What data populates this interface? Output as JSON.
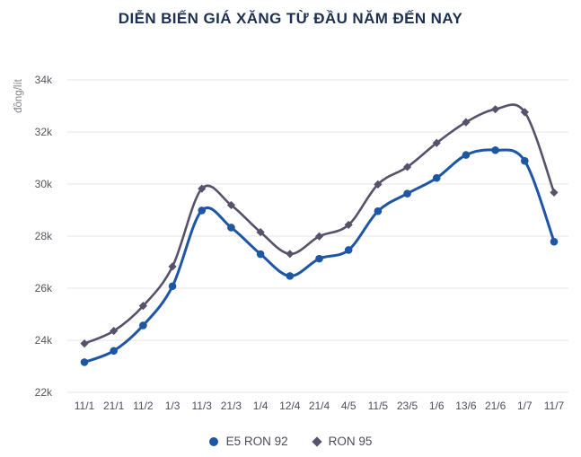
{
  "title": "DIỄN BIẾN GIÁ XĂNG TỪ ĐẦU NĂM ĐẾN NAY",
  "colors": {
    "title": "#1c3151",
    "e5_ron_92": "#1d56a5",
    "ron_95": "#56526b",
    "grid": "#e6e6e9",
    "y_tick_text": "#55555f",
    "x_tick_text": "#4d4d5f",
    "legend_text": "#4c4c5c",
    "y_unit_text": "#83838a"
  },
  "chart_data": {
    "type": "line",
    "title": "DIỄN BIẾN GIÁ XĂNG TỪ ĐẦU NĂM ĐẾN NAY",
    "ylabel": "đồng/lít",
    "xlabel": "",
    "x": [
      "11/1",
      "21/1",
      "11/2",
      "1/3",
      "11/3",
      "21/3",
      "1/4",
      "12/4",
      "21/4",
      "4/5",
      "11/5",
      "23/5",
      "1/6",
      "13/6",
      "21/6",
      "1/7",
      "11/7"
    ],
    "series": [
      {
        "name": "E5 RON 92",
        "marker": "circle",
        "color": "#1d56a5",
        "values": [
          23159,
          23595,
          24571,
          26077,
          28985,
          28330,
          27309,
          26470,
          27134,
          27468,
          28959,
          29633,
          30235,
          31117,
          31302,
          30891,
          27788
        ]
      },
      {
        "name": "RON 95",
        "marker": "diamond",
        "color": "#56526b",
        "values": [
          23876,
          24360,
          25322,
          26834,
          29824,
          29192,
          28153,
          27317,
          27992,
          28434,
          29988,
          30657,
          31578,
          32375,
          32873,
          32763,
          29675
        ]
      }
    ],
    "ylim": [
      22000,
      34000
    ],
    "yticks": [
      {
        "value": 22000,
        "label": "22k"
      },
      {
        "value": 24000,
        "label": "24k"
      },
      {
        "value": 26000,
        "label": "26k"
      },
      {
        "value": 28000,
        "label": "28k"
      },
      {
        "value": 30000,
        "label": "30k"
      },
      {
        "value": 32000,
        "label": "32k"
      },
      {
        "value": 34000,
        "label": "34k"
      }
    ],
    "grid": true,
    "curve": "smooth",
    "legend_position": "bottom"
  }
}
